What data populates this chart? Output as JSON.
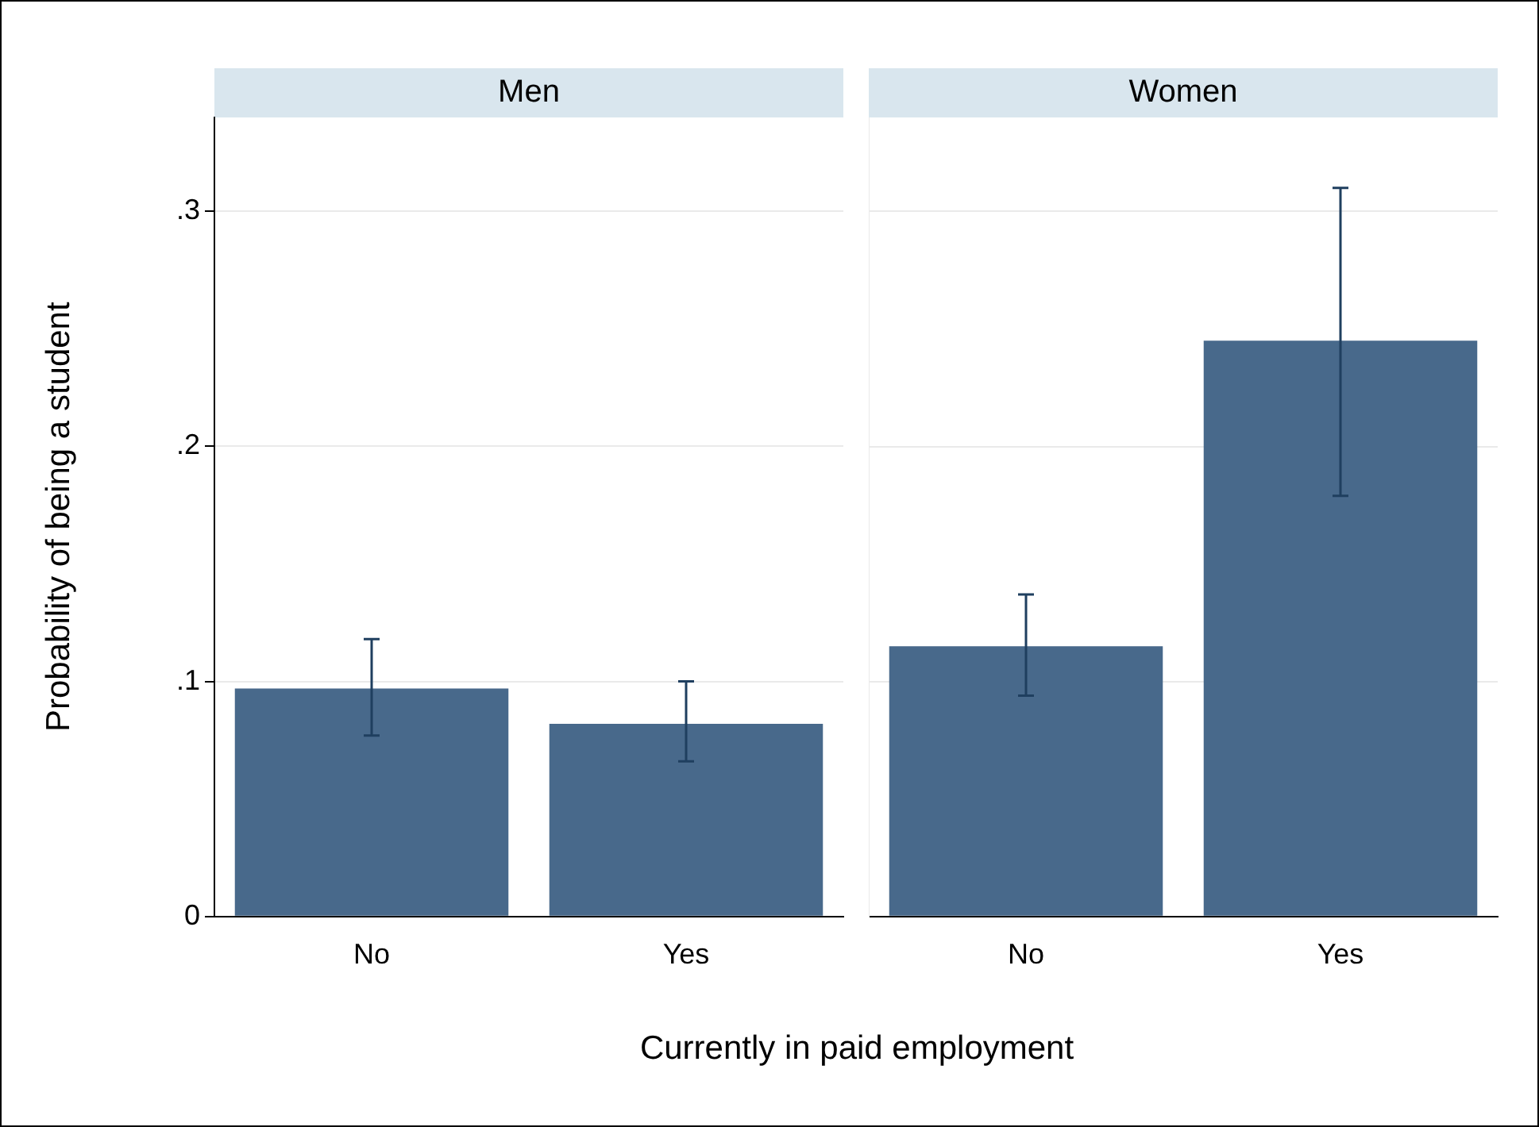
{
  "chart_data": [
    {
      "type": "bar",
      "title": "Men",
      "categories": [
        "No",
        "Yes"
      ],
      "values": [
        0.097,
        0.082
      ],
      "errors": [
        [
          0.077,
          0.118
        ],
        [
          0.066,
          0.1
        ]
      ],
      "color": "#48698b",
      "ylim": [
        0,
        0.34
      ],
      "yticks": [
        {
          "value": 0,
          "label": "0"
        },
        {
          "value": 0.1,
          "label": ".1"
        },
        {
          "value": 0.2,
          "label": ".2"
        },
        {
          "value": 0.3,
          "label": ".3"
        }
      ],
      "grid": "y",
      "ylabel": "Probability of being a student",
      "xlabel": "Currently in paid employment"
    },
    {
      "type": "bar",
      "title": "Women",
      "categories": [
        "No",
        "Yes"
      ],
      "values": [
        0.115,
        0.245
      ],
      "errors": [
        [
          0.094,
          0.137
        ],
        [
          0.179,
          0.31
        ]
      ],
      "color": "#48698b",
      "ylim": [
        0,
        0.34
      ],
      "yticks": [
        0,
        0.1,
        0.2,
        0.3
      ],
      "grid": "y",
      "tick_labels": "x"
    }
  ]
}
